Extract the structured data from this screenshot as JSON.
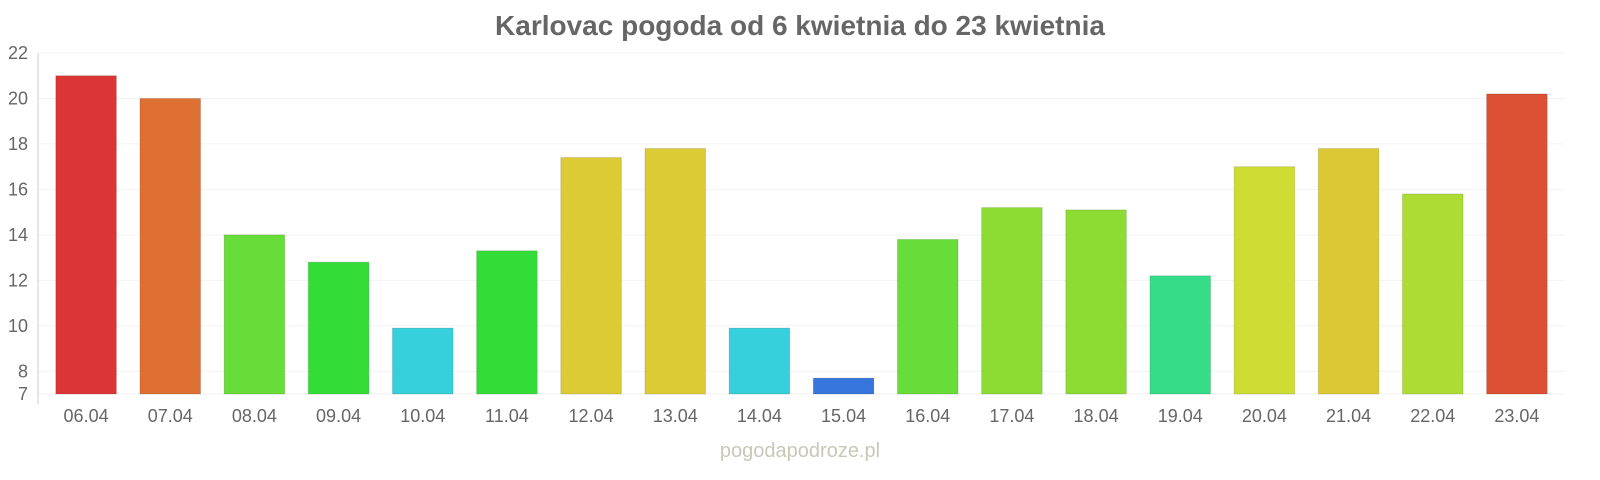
{
  "chart_data": {
    "type": "bar",
    "title": "Karlovac pogoda od 6 kwietnia do 23 kwietnia",
    "xlabel": "",
    "ylabel": "",
    "ylim": [
      7,
      22
    ],
    "yticks": [
      7,
      8,
      10,
      12,
      14,
      16,
      18,
      20,
      22
    ],
    "grid": true,
    "categories": [
      "06.04",
      "07.04",
      "08.04",
      "09.04",
      "10.04",
      "11.04",
      "12.04",
      "13.04",
      "14.04",
      "15.04",
      "16.04",
      "17.04",
      "18.04",
      "19.04",
      "20.04",
      "21.04",
      "22.04",
      "23.04"
    ],
    "values": [
      21.0,
      20.0,
      14.0,
      12.8,
      9.9,
      13.3,
      17.4,
      17.8,
      9.9,
      7.7,
      13.8,
      15.2,
      15.1,
      12.2,
      17.0,
      17.8,
      15.8,
      20.2
    ],
    "colors": [
      "#dc3535",
      "#de7034",
      "#68dc38",
      "#34dc38",
      "#36cfdc",
      "#34dc38",
      "#dccb34",
      "#dccb34",
      "#36cfdc",
      "#3575dc",
      "#68dc38",
      "#8ddc34",
      "#8ddc34",
      "#36dc88",
      "#cfdc34",
      "#dcc834",
      "#addc34",
      "#dc5034"
    ]
  },
  "footer": "pogodapodroze.pl"
}
